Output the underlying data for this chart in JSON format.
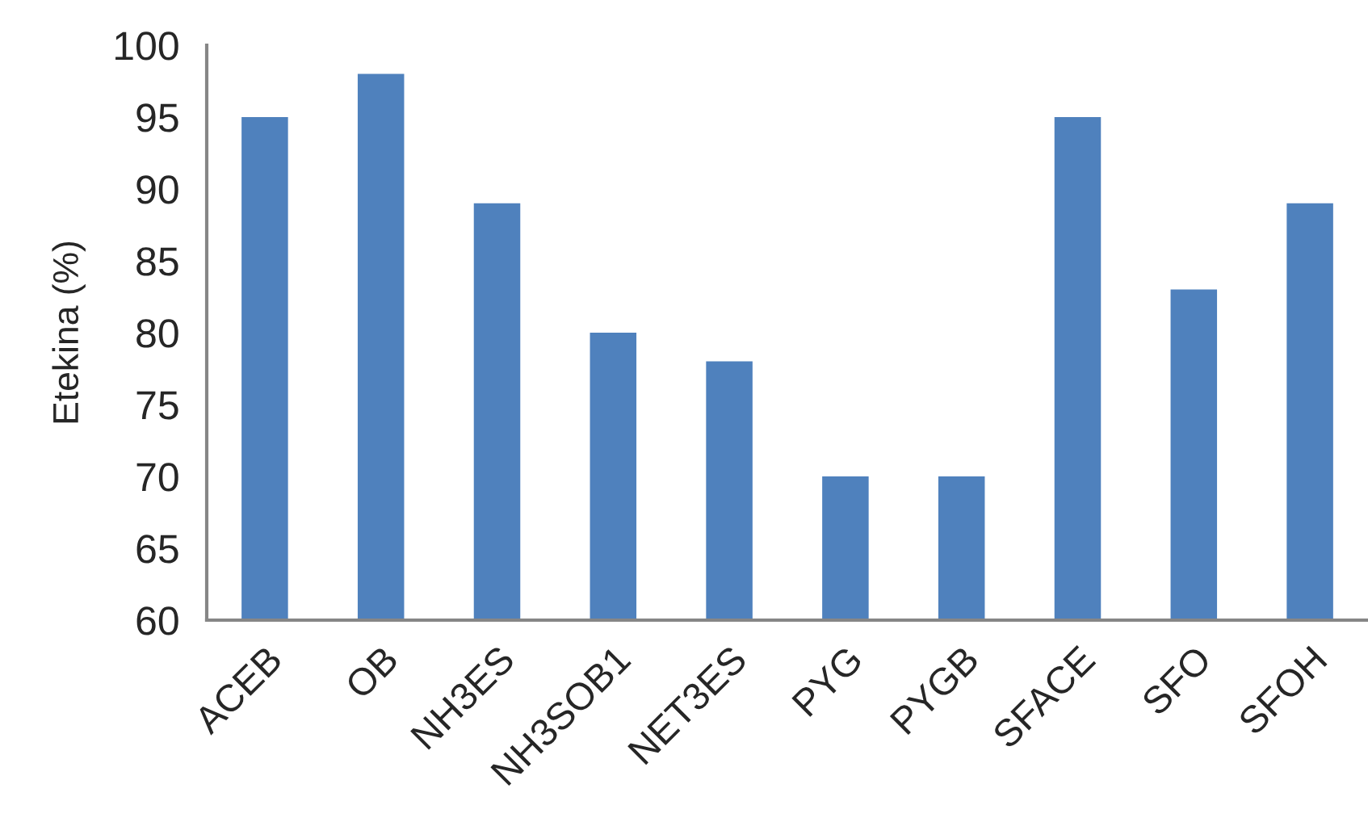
{
  "chart_data": {
    "type": "bar",
    "ylabel": "Etekina (%)",
    "categories": [
      "ACEB",
      "OB",
      "NH3ES",
      "NH3SOB1",
      "NET3ES",
      "PYG",
      "PYGB",
      "SFACE",
      "SFO",
      "SFOH"
    ],
    "values": [
      95,
      98,
      89,
      80,
      78,
      70,
      70,
      95,
      83,
      89
    ],
    "color": "#4f81bd",
    "ylim": [
      60,
      100
    ],
    "yticks": [
      60,
      65,
      70,
      75,
      80,
      85,
      90,
      95,
      100
    ]
  }
}
